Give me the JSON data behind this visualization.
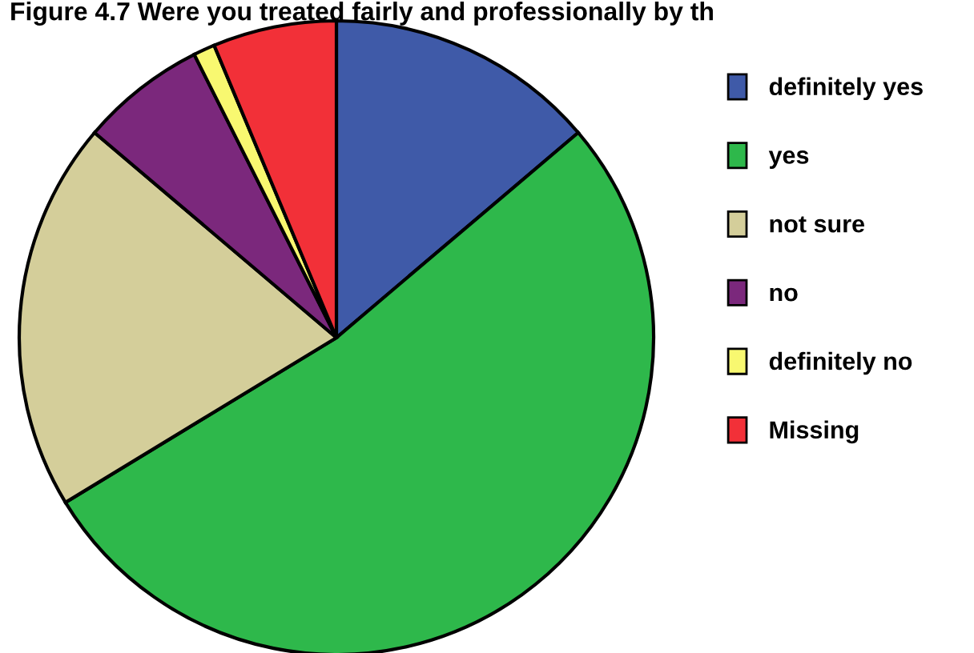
{
  "chart_data": {
    "type": "pie",
    "title": "Figure 4.7 Were you treated fairly and professionally by th",
    "categories": [
      "definitely yes",
      "yes",
      "not sure",
      "no",
      "definitely no",
      "Missing"
    ],
    "values": [
      13.8,
      52.5,
      19.9,
      6.4,
      1.1,
      6.3
    ],
    "colors": [
      "#3f5aa8",
      "#2eb84b",
      "#d4ce9a",
      "#7b287c",
      "#f8f870",
      "#f23038"
    ],
    "legend": "right"
  }
}
